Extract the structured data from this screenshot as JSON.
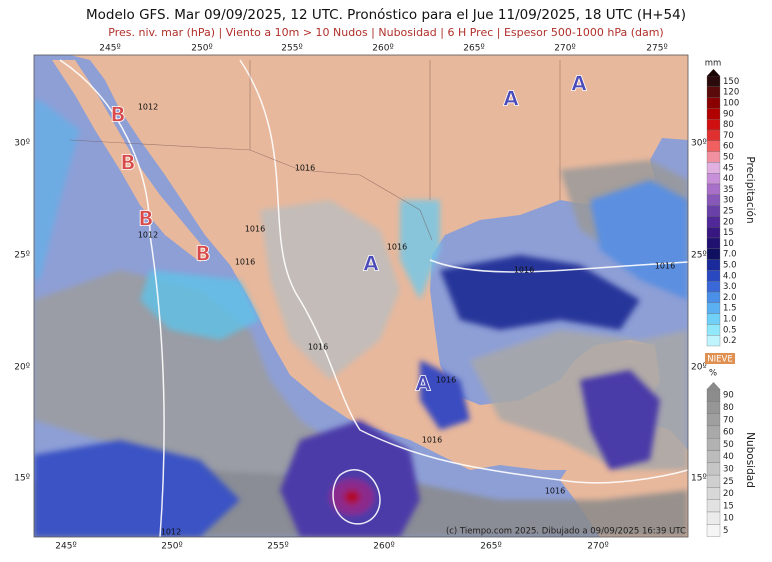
{
  "header": {
    "title": "Modelo GFS. Mar 09/09/2025, 12 UTC. Pronóstico para el Jue 11/09/2025, 18 UTC (H+54)",
    "subtitle": "Pres. niv. mar (hPa) | Viento a 10m > 10 Nudos | Nubosidad | 6 H Prec | Espesor 500-1000 hPa (dam)"
  },
  "axes": {
    "top_lon": [
      "245º",
      "250º",
      "255º",
      "260º",
      "265º",
      "270º",
      "275º"
    ],
    "bottom_lon": [
      "245º",
      "250º",
      "255º",
      "260º",
      "265º",
      "270º"
    ],
    "left_lat": [
      "30º",
      "25º",
      "20º",
      "15º"
    ],
    "right_lat": [
      "30º",
      "25º",
      "20º",
      "15º"
    ]
  },
  "isobars": [
    "1012",
    "1016",
    "1012",
    "1016",
    "1016",
    "1016",
    "1016",
    "1016",
    "1016",
    "1016",
    "1016",
    "1016",
    "1012"
  ],
  "pressure_centers": [
    "B",
    "B",
    "B",
    "B",
    "A",
    "A",
    "A",
    "A"
  ],
  "legend": {
    "precip_unit": "mm",
    "precip_title": "Precipitación",
    "precip_levels": [
      "150",
      "120",
      "100",
      "90",
      "80",
      "70",
      "60",
      "50",
      "45",
      "40",
      "35",
      "30",
      "25",
      "20",
      "15",
      "10",
      "7.0",
      "5.0",
      "4.0",
      "3.0",
      "2.0",
      "1.5",
      "1.0",
      "0.5",
      "0.2"
    ],
    "snow_label": "NIEVE",
    "cloud_unit": "%",
    "cloud_title": "Nubosidad",
    "cloud_levels": [
      "90",
      "80",
      "70",
      "60",
      "50",
      "40",
      "30",
      "25",
      "20",
      "15",
      "10",
      "5"
    ]
  },
  "footer": {
    "credit": "(c) Tiempo.com 2025. Dibujado a 09/09/2025 16:39 UTC"
  }
}
